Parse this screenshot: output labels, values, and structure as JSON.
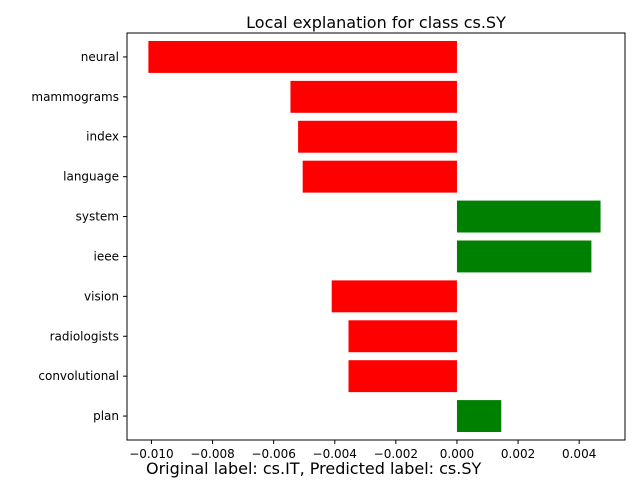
{
  "chart_data": {
    "type": "bar",
    "orientation": "horizontal",
    "title": "Local explanation for class cs.SY",
    "xlabel": "",
    "ylabel": "",
    "categories": [
      "plan",
      "convolutional",
      "radiologists",
      "vision",
      "ieee",
      "system",
      "language",
      "index",
      "mammograms",
      "neural"
    ],
    "values": [
      0.00145,
      -0.00355,
      -0.00355,
      -0.0041,
      0.0044,
      0.0047,
      -0.00505,
      -0.0052,
      -0.00545,
      -0.0101
    ],
    "xlim": [
      -0.0108,
      0.0055
    ],
    "xticks": [
      -0.01,
      -0.008,
      -0.006,
      -0.004,
      -0.002,
      0.0,
      0.002,
      0.004
    ],
    "xtick_labels": [
      "−0.010",
      "−0.008",
      "−0.006",
      "−0.004",
      "−0.002",
      "0.000",
      "0.002",
      "0.004"
    ],
    "colors": {
      "positive": "#008000",
      "negative": "#ff0000"
    },
    "grid": false,
    "legend": "none"
  },
  "caption": "Original label: cs.IT, Predicted label: cs.SY"
}
